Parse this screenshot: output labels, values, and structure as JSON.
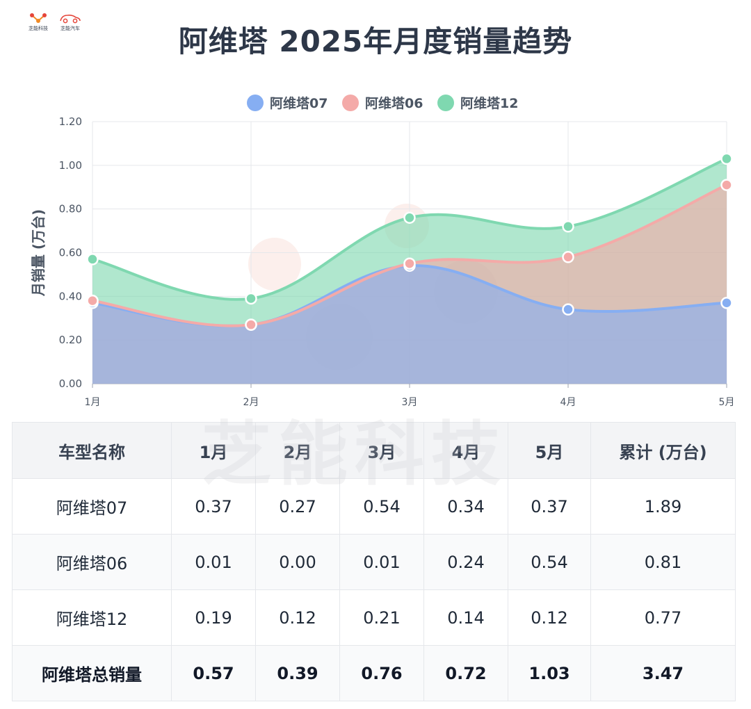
{
  "brand": {
    "logo1_text": "芝能科技",
    "logo2_text": "芝能汽车"
  },
  "title": "阿维塔 2025年月度销量趋势",
  "watermark": "芝能科技",
  "chart_data": {
    "type": "area",
    "stacked": true,
    "categories": [
      "1月",
      "2月",
      "3月",
      "4月",
      "5月"
    ],
    "series": [
      {
        "name": "阿维塔07",
        "values": [
          0.37,
          0.27,
          0.54,
          0.34,
          0.37
        ],
        "color": "#86aef2"
      },
      {
        "name": "阿维塔06",
        "values": [
          0.01,
          0.0,
          0.01,
          0.24,
          0.54
        ],
        "color": "#f4aaa8"
      },
      {
        "name": "阿维塔12",
        "values": [
          0.19,
          0.12,
          0.21,
          0.14,
          0.12
        ],
        "color": "#7fd8b0"
      }
    ],
    "ylabel": "月销量 (万台)",
    "ylim": [
      0,
      1.2
    ],
    "yticks": [
      "0.00",
      "0.20",
      "0.40",
      "0.60",
      "0.80",
      "1.00",
      "1.20"
    ],
    "grid": true,
    "legend_position": "top-center"
  },
  "table": {
    "headers": [
      "车型名称",
      "1月",
      "2月",
      "3月",
      "4月",
      "5月",
      "累计 (万台)"
    ],
    "rows": [
      [
        "阿维塔07",
        "0.37",
        "0.27",
        "0.54",
        "0.34",
        "0.37",
        "1.89"
      ],
      [
        "阿维塔06",
        "0.01",
        "0.00",
        "0.01",
        "0.24",
        "0.54",
        "0.81"
      ],
      [
        "阿维塔12",
        "0.19",
        "0.12",
        "0.21",
        "0.14",
        "0.12",
        "0.77"
      ]
    ],
    "total": [
      "阿维塔总销量",
      "0.57",
      "0.39",
      "0.76",
      "0.72",
      "1.03",
      "3.47"
    ]
  }
}
